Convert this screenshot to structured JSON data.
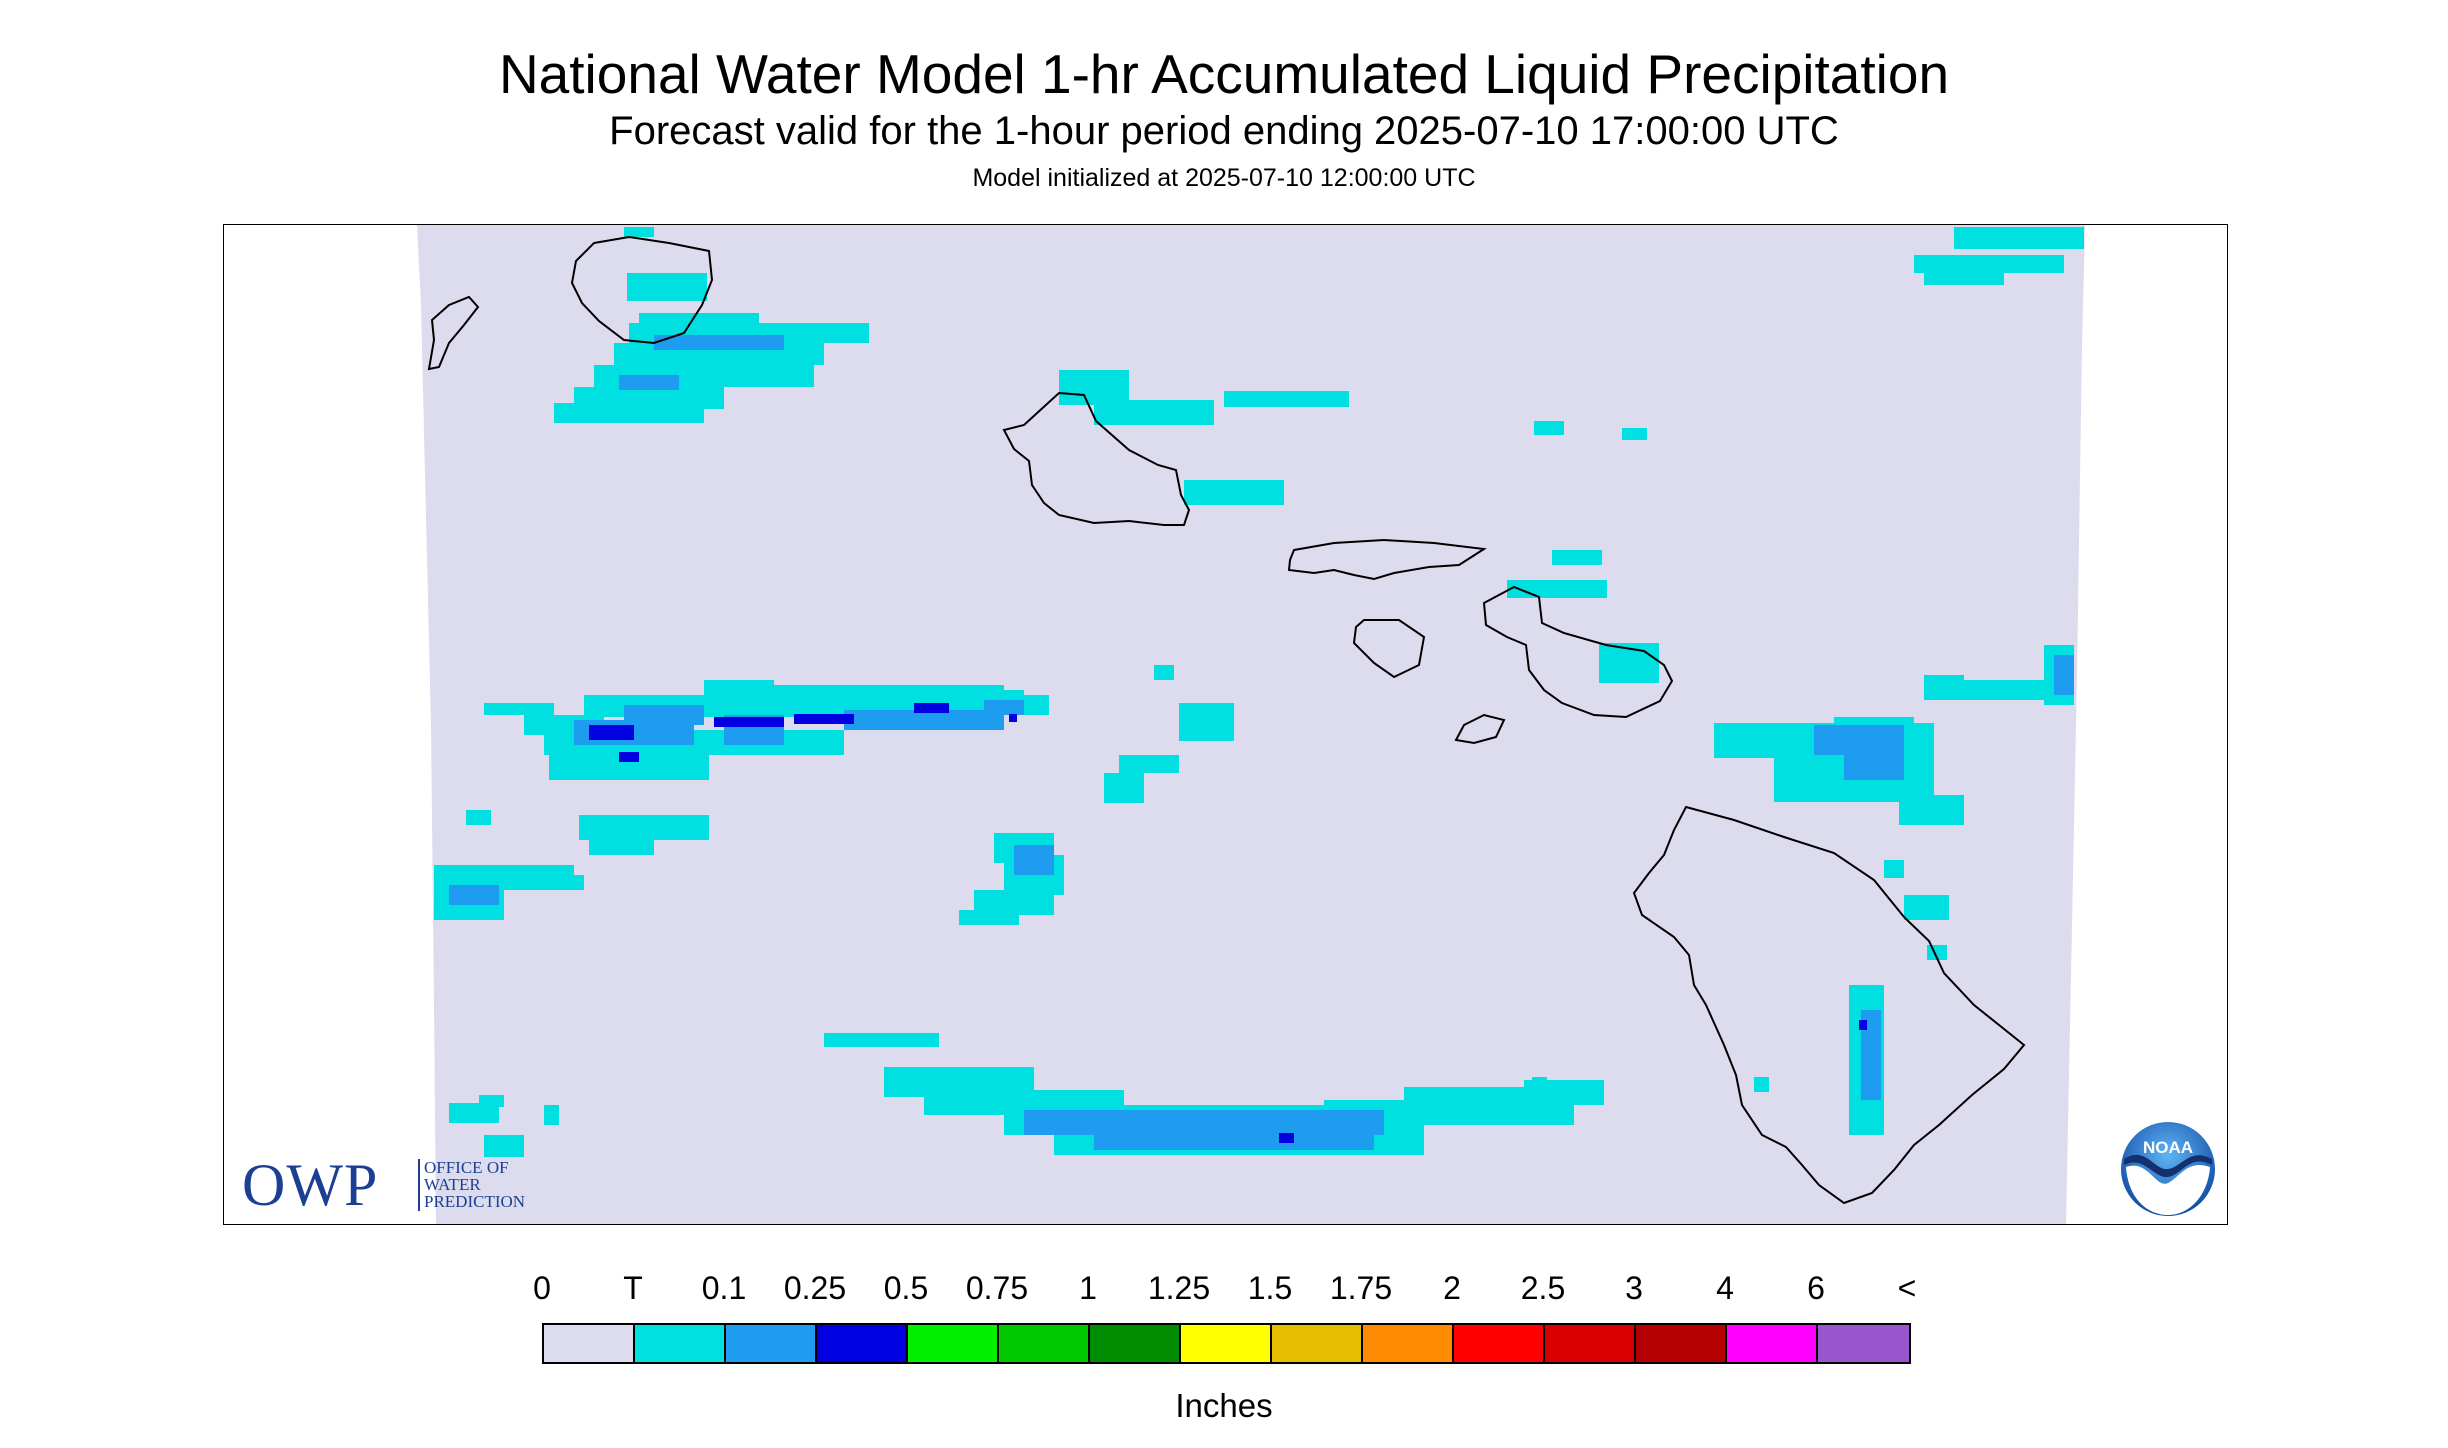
{
  "title": "National Water Model 1-hr Accumulated Liquid Precipitation",
  "subtitle": "Forecast valid for the 1-hour period ending 2025-07-10 17:00:00 UTC",
  "init_line": "Model initialized at 2025-07-10 12:00:00 UTC",
  "map": {
    "background_color": "#ffffff",
    "data_area_color": "#dcdcee",
    "coastline_color": "#000000",
    "islands": [
      "Kauai",
      "Niihau",
      "Oahu",
      "Molokai",
      "Lanai",
      "Maui",
      "Kahoolawe",
      "Hawaii"
    ]
  },
  "owp_logo": {
    "letters": "OWP",
    "line1": "OFFICE OF",
    "line2": "WATER",
    "line3": "PREDICTION",
    "color": "#1c3f94"
  },
  "noaa_logo": {
    "text": "NOAA",
    "color": "#1f62b8"
  },
  "legend": {
    "labels": [
      "0",
      "T",
      "0.1",
      "0.25",
      "0.5",
      "0.75",
      "1",
      "1.25",
      "1.5",
      "1.75",
      "2",
      "2.5",
      "3",
      "4",
      "6",
      "<"
    ],
    "colors": [
      "#dcdcee",
      "#00e0e0",
      "#1e9cf0",
      "#0000e0",
      "#00f000",
      "#00c800",
      "#008c00",
      "#ffff00",
      "#e6be00",
      "#ff8c00",
      "#ff0000",
      "#d80000",
      "#b40000",
      "#ff00ff",
      "#9955cc"
    ],
    "units": "Inches"
  }
}
